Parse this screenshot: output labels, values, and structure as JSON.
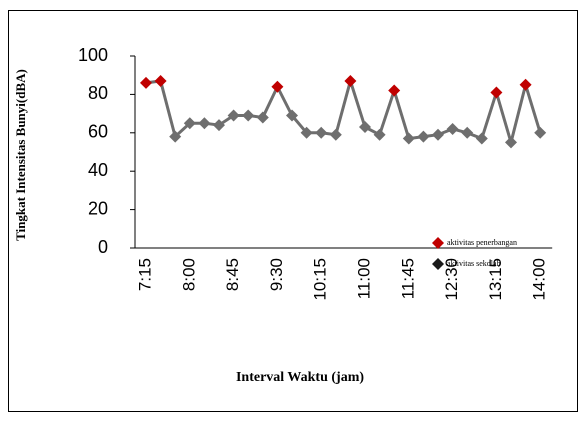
{
  "chart_data": {
    "type": "line",
    "x_label": "Interval Waktu (jam)",
    "y_label": "Tingkat Intensitas Bunyi(dBA)",
    "categories": [
      "7:15",
      null,
      null,
      "8:00",
      null,
      null,
      "8:45",
      null,
      null,
      "9:30",
      null,
      null,
      "10:15",
      null,
      null,
      "11:00",
      null,
      null,
      "11:45",
      null,
      null,
      "12:30",
      null,
      null,
      "13:15",
      null,
      null,
      "14:00"
    ],
    "series": [
      {
        "name": "aktivitas penerbangan",
        "color": "#c00000",
        "values": [
          86,
          87,
          null,
          null,
          null,
          null,
          null,
          null,
          null,
          84,
          null,
          null,
          null,
          null,
          87,
          null,
          null,
          82,
          null,
          null,
          null,
          null,
          null,
          null,
          81,
          null,
          85,
          null
        ]
      },
      {
        "name": "aktivitas sekolah",
        "color": "#1a1a1a",
        "values": [
          null,
          null,
          58,
          65,
          65,
          64,
          69,
          69,
          68,
          null,
          69,
          60,
          60,
          59,
          null,
          63,
          59,
          null,
          57,
          58,
          59,
          62,
          60,
          57,
          null,
          55,
          null,
          60
        ]
      }
    ],
    "line_color": "#6e6e6e",
    "ylim": [
      0,
      100
    ],
    "yticks": [
      0,
      20,
      40,
      60,
      80,
      100
    ],
    "grid": false,
    "legend": "right"
  }
}
